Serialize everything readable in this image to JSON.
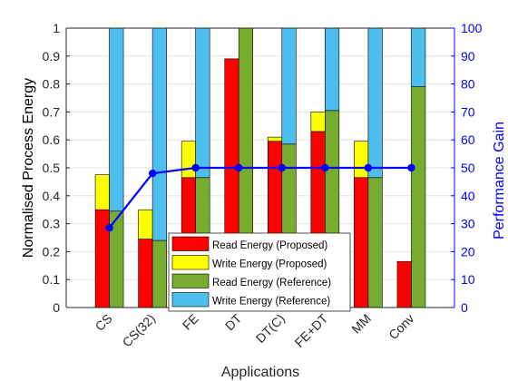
{
  "chart_data": {
    "type": "bar",
    "title": "",
    "xlabel": "Applications",
    "ylabel": "Normalised Process Energy",
    "y2label": "Performance Gain",
    "ylim": [
      0,
      1
    ],
    "y2lim": [
      0,
      100
    ],
    "yticks": [
      "0",
      "0.1",
      "0.2",
      "0.3",
      "0.4",
      "0.5",
      "0.6",
      "0.7",
      "0.8",
      "0.9",
      "1"
    ],
    "y2ticks": [
      "0",
      "10",
      "20",
      "30",
      "40",
      "50",
      "60",
      "70",
      "80",
      "90",
      "100"
    ],
    "categories": [
      "CS",
      "CS(32)",
      "FE",
      "DT",
      "DT(C)",
      "FE+DT",
      "MM",
      "Conv"
    ],
    "grid": "horizontal",
    "legend_position": "bottom-center",
    "stacked_series": [
      {
        "name": "Read Energy (Proposed)",
        "group": "proposed",
        "color": "#ff0000",
        "values": [
          0.35,
          0.245,
          0.465,
          0.89,
          0.595,
          0.63,
          0.465,
          0.165
        ]
      },
      {
        "name": "Write Energy (Proposed)",
        "group": "proposed",
        "color": "#ffff00",
        "values": [
          0.125,
          0.105,
          0.13,
          0.0,
          0.015,
          0.07,
          0.13,
          0.0
        ]
      },
      {
        "name": "Read Energy (Reference)",
        "group": "reference",
        "color": "#77ac30",
        "values": [
          0.345,
          0.24,
          0.465,
          1.0,
          0.585,
          0.705,
          0.465,
          0.79
        ]
      },
      {
        "name": "Write Energy (Reference)",
        "group": "reference",
        "color": "#4dbeee",
        "values": [
          0.655,
          0.76,
          0.535,
          0.0,
          0.415,
          0.295,
          0.535,
          0.21
        ]
      }
    ],
    "line_series": {
      "name": "Performance Gain",
      "axis": "right",
      "color": "#0000ff",
      "values": [
        28.5,
        48,
        50,
        50,
        50,
        50,
        50,
        50
      ]
    },
    "colors": {
      "left_axis": "#262626",
      "right_axis": "#0000ff",
      "grid": "#e6e6e6"
    }
  }
}
